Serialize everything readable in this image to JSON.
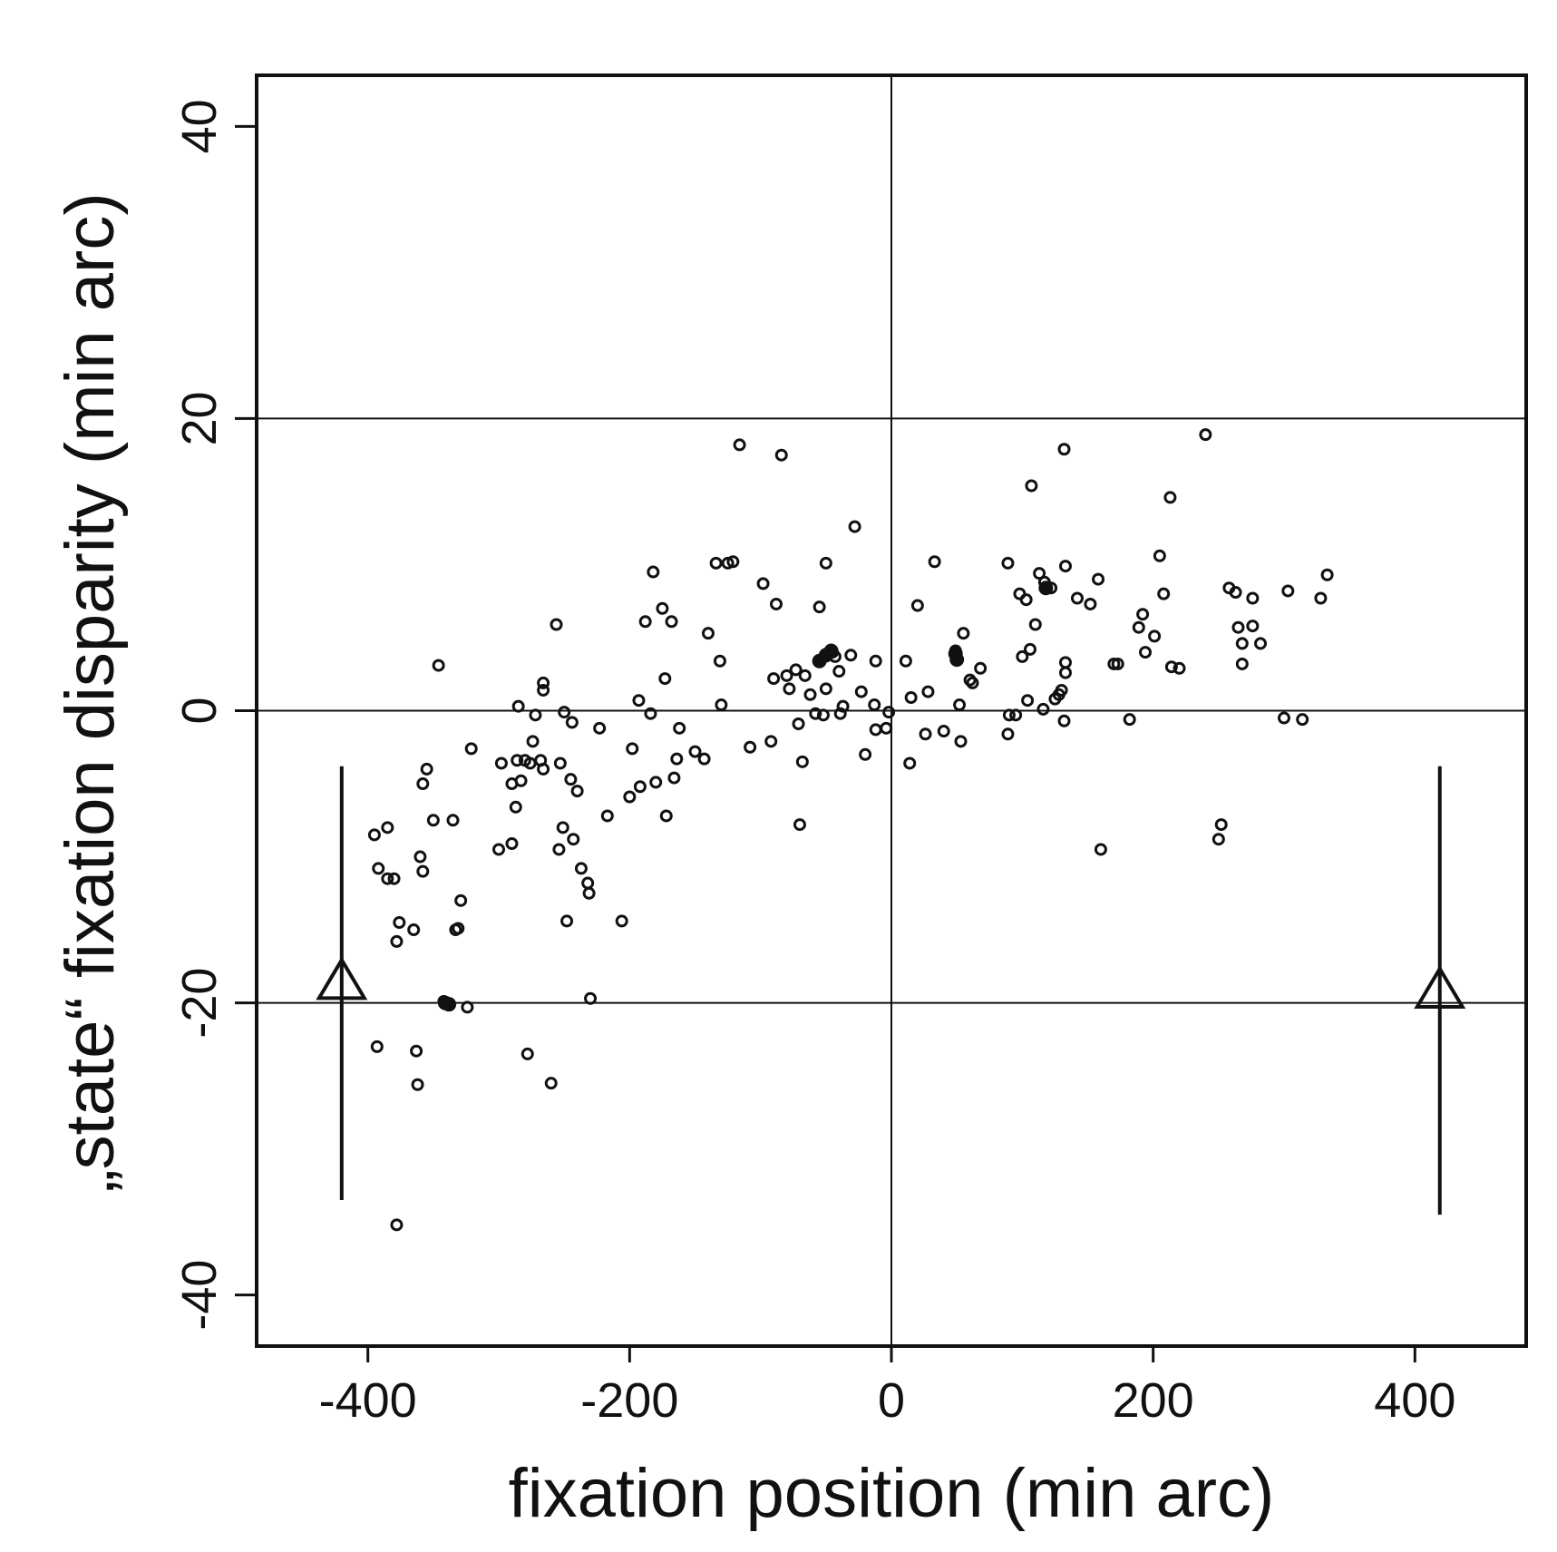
{
  "chart_data": {
    "type": "scatter",
    "xlabel": "fixation position (min arc)",
    "ylabel": "„state“ fixation disparity (min arc)",
    "xlim": [
      -485,
      485
    ],
    "ylim": [
      -43.5,
      43.5
    ],
    "xticks": [
      -400,
      -200,
      0,
      200,
      400
    ],
    "yticks": [
      -40,
      -20,
      0,
      20,
      40
    ],
    "xtick_labels": [
      "-400",
      "-200",
      "0",
      "200",
      "400"
    ],
    "ytick_labels": [
      "-40",
      "-20",
      "0",
      "20",
      "40"
    ],
    "reference_lines": {
      "x": [
        0
      ],
      "y": [
        -20,
        0,
        20
      ]
    },
    "grid": false,
    "legend": "none",
    "series": [
      {
        "marker": "open-circle",
        "points": [
          [
            -395,
            -8.5
          ],
          [
            -392,
            -10.8
          ],
          [
            -393,
            -23
          ],
          [
            -385,
            -8
          ],
          [
            -385,
            -11.5
          ],
          [
            -380,
            -11.5
          ],
          [
            -378,
            -15.8
          ],
          [
            -376,
            -14.5
          ],
          [
            -378,
            -35.2
          ],
          [
            -365,
            -15
          ],
          [
            -363,
            -23.3
          ],
          [
            -362,
            -25.6
          ],
          [
            -360,
            -10
          ],
          [
            -358,
            -5
          ],
          [
            -358,
            -11
          ],
          [
            -355,
            -4
          ],
          [
            -350,
            -7.5
          ],
          [
            -346,
            3.1
          ],
          [
            -342,
            -19.9
          ],
          [
            -340,
            -20.1
          ],
          [
            -335,
            -7.5
          ],
          [
            -333,
            -15
          ],
          [
            -331,
            -14.9
          ],
          [
            -329,
            -13
          ],
          [
            -324,
            -20.3
          ],
          [
            -321,
            -2.6
          ],
          [
            -300,
            -9.5
          ],
          [
            -298,
            -3.6
          ],
          [
            -290,
            -9.1
          ],
          [
            -290,
            -5
          ],
          [
            -287,
            -6.6
          ],
          [
            -286,
            -3.4
          ],
          [
            -285,
            0.3
          ],
          [
            -283,
            -4.8
          ],
          [
            -280,
            -3.4
          ],
          [
            -278,
            -23.5
          ],
          [
            -276,
            -3.6
          ],
          [
            -274,
            -2.1
          ],
          [
            -272,
            -0.3
          ],
          [
            -268,
            -3.4
          ],
          [
            -266,
            -4
          ],
          [
            -266,
            1.4
          ],
          [
            -266,
            1.9
          ],
          [
            -260,
            -25.5
          ],
          [
            -256,
            5.9
          ],
          [
            -254,
            -9.5
          ],
          [
            -253,
            -3.6
          ],
          [
            -251,
            -8
          ],
          [
            -250,
            -0.1
          ],
          [
            -248,
            -14.4
          ],
          [
            -245,
            -4.7
          ],
          [
            -244,
            -0.8
          ],
          [
            -243,
            -8.8
          ],
          [
            -240,
            -5.5
          ],
          [
            -237,
            -10.8
          ],
          [
            -232,
            -11.8
          ],
          [
            -231,
            -12.5
          ],
          [
            -230,
            -19.7
          ],
          [
            -223,
            -1.2
          ],
          [
            -217,
            -7.2
          ],
          [
            -206,
            -14.4
          ],
          [
            -200,
            -5.9
          ],
          [
            -198,
            -2.6
          ],
          [
            -193,
            0.7
          ],
          [
            -192,
            -5.2
          ],
          [
            -188,
            6.1
          ],
          [
            -184,
            -0.2
          ],
          [
            -182,
            9.5
          ],
          [
            -180,
            -4.9
          ],
          [
            -175,
            7
          ],
          [
            -173,
            2.2
          ],
          [
            -172,
            -7.2
          ],
          [
            -168,
            6.1
          ],
          [
            -166,
            -4.6
          ],
          [
            -164,
            -3.3
          ],
          [
            -162,
            -1.2
          ],
          [
            -150,
            -2.8
          ],
          [
            -143,
            -3.3
          ],
          [
            -140,
            5.3
          ],
          [
            -134,
            10.1
          ],
          [
            -131,
            3.4
          ],
          [
            -130,
            0.4
          ],
          [
            -125,
            10.1
          ],
          [
            -121,
            10.2
          ],
          [
            -116,
            18.2
          ],
          [
            -108,
            -2.5
          ],
          [
            -98,
            8.7
          ],
          [
            -92,
            -2.1
          ],
          [
            -90,
            2.2
          ],
          [
            -88,
            7.3
          ],
          [
            -84,
            17.5
          ],
          [
            -80,
            2.4
          ],
          [
            -78,
            1.5
          ],
          [
            -73,
            2.8
          ],
          [
            -71,
            -0.9
          ],
          [
            -70,
            -7.8
          ],
          [
            -68,
            -3.5
          ],
          [
            -66,
            2.4
          ],
          [
            -62,
            1.1
          ],
          [
            -58,
            -0.2
          ],
          [
            -55,
            7.1
          ],
          [
            -55,
            3.4
          ],
          [
            -52,
            -0.3
          ],
          [
            -50,
            1.5
          ],
          [
            -50,
            10.1
          ],
          [
            -48,
            3.9
          ],
          [
            -45,
            4
          ],
          [
            -43,
            3.7
          ],
          [
            -40,
            2.7
          ],
          [
            -39,
            -0.2
          ],
          [
            -37,
            0.3
          ],
          [
            -31,
            3.8
          ],
          [
            -28,
            12.6
          ],
          [
            -23,
            1.3
          ],
          [
            -20,
            -3
          ],
          [
            -13,
            0.4
          ],
          [
            -12,
            3.4
          ],
          [
            -12,
            -1.3
          ],
          [
            -4,
            -1.2
          ],
          [
            -2,
            -0.1
          ],
          [
            11,
            3.4
          ],
          [
            14,
            -3.6
          ],
          [
            15,
            0.9
          ],
          [
            20,
            7.2
          ],
          [
            26,
            -1.6
          ],
          [
            28,
            1.3
          ],
          [
            33,
            10.2
          ],
          [
            40,
            -1.4
          ],
          [
            49,
            4.1
          ],
          [
            52,
            0.4
          ],
          [
            53,
            -2.1
          ],
          [
            55,
            5.3
          ],
          [
            60,
            2.1
          ],
          [
            62,
            1.9
          ],
          [
            68,
            2.9
          ],
          [
            89,
            10.1
          ],
          [
            89,
            -1.6
          ],
          [
            90,
            -0.3
          ],
          [
            95,
            -0.3
          ],
          [
            98,
            8
          ],
          [
            100,
            3.7
          ],
          [
            103,
            7.6
          ],
          [
            104,
            0.7
          ],
          [
            106,
            4.2
          ],
          [
            107,
            15.4
          ],
          [
            110,
            5.9
          ],
          [
            113,
            9.4
          ],
          [
            116,
            0.1
          ],
          [
            117,
            8.8
          ],
          [
            122,
            8.4
          ],
          [
            125,
            0.8
          ],
          [
            128,
            1.1
          ],
          [
            130,
            1.4
          ],
          [
            132,
            -0.7
          ],
          [
            132,
            17.9
          ],
          [
            133,
            2.6
          ],
          [
            133,
            3.3
          ],
          [
            133,
            9.9
          ],
          [
            142,
            7.7
          ],
          [
            152,
            7.3
          ],
          [
            158,
            9
          ],
          [
            160,
            -9.5
          ],
          [
            170,
            3.2
          ],
          [
            173,
            3.2
          ],
          [
            182,
            -0.6
          ],
          [
            189,
            5.7
          ],
          [
            192,
            6.6
          ],
          [
            194,
            4
          ],
          [
            201,
            5.1
          ],
          [
            205,
            10.6
          ],
          [
            208,
            8
          ],
          [
            213,
            14.6
          ],
          [
            214,
            3
          ],
          [
            220,
            2.9
          ],
          [
            240,
            18.9
          ],
          [
            250,
            -8.8
          ],
          [
            252,
            -7.8
          ],
          [
            258,
            8.4
          ],
          [
            263,
            8.1
          ],
          [
            265,
            5.7
          ],
          [
            268,
            3.2
          ],
          [
            268,
            4.6
          ],
          [
            276,
            7.7
          ],
          [
            276,
            5.8
          ],
          [
            282,
            4.6
          ],
          [
            300,
            -0.5
          ],
          [
            303,
            8.2
          ],
          [
            314,
            -0.6
          ],
          [
            328,
            7.7
          ],
          [
            333,
            9.3
          ]
        ]
      },
      {
        "marker": "filled-circle",
        "points": [
          [
            -55,
            3.4
          ],
          [
            -50,
            3.8
          ],
          [
            -46,
            4.1
          ],
          [
            49,
            3.9
          ],
          [
            50,
            3.5
          ],
          [
            118,
            8.4
          ],
          [
            -341,
            -20
          ],
          [
            -338,
            -20.1
          ]
        ]
      }
    ],
    "reference_markers": [
      {
        "x": -420,
        "y": -18.5,
        "ymin": -33.5,
        "ymax": -3.8,
        "marker": "open-triangle"
      },
      {
        "x": 419,
        "y": -19.1,
        "ymin": -34.5,
        "ymax": -3.8,
        "marker": "open-triangle"
      }
    ]
  }
}
